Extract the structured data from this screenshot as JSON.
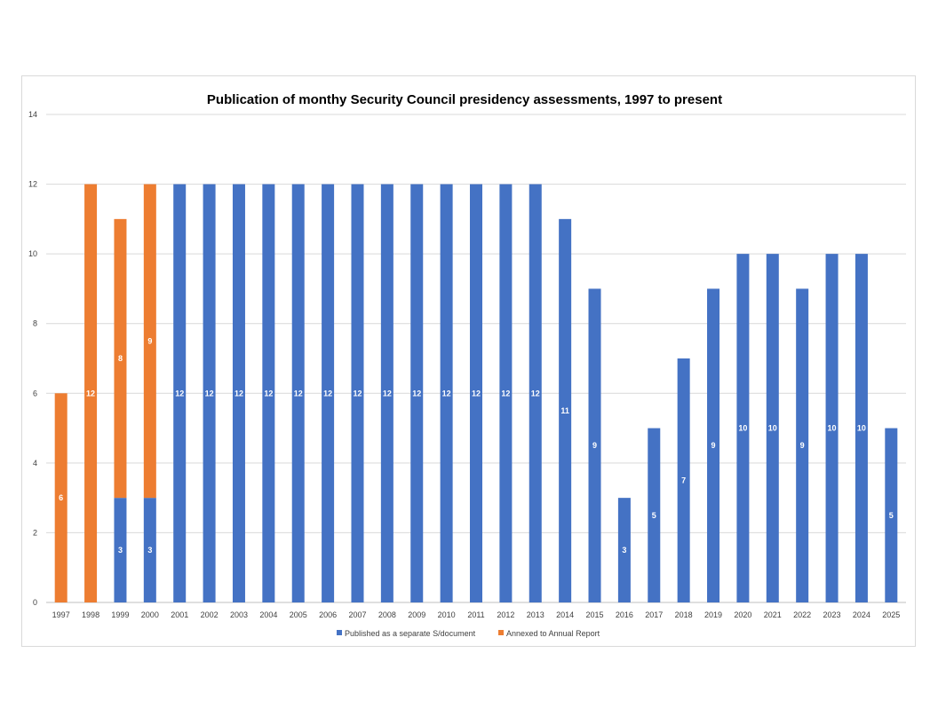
{
  "chart_data": {
    "type": "bar",
    "stacked": true,
    "title": "Publication of monthy Security Council presidency assessments, 1997 to present",
    "xlabel": "",
    "ylabel": "",
    "ylim": [
      0,
      14
    ],
    "yticks": [
      0,
      2,
      4,
      6,
      8,
      10,
      12,
      14
    ],
    "grid": true,
    "legend_position": "bottom",
    "categories": [
      "1997",
      "1998",
      "1999",
      "2000",
      "2001",
      "2002",
      "2003",
      "2004",
      "2005",
      "2006",
      "2007",
      "2008",
      "2009",
      "2010",
      "2011",
      "2012",
      "2013",
      "2014",
      "2015",
      "2016",
      "2017",
      "2018",
      "2019",
      "2020",
      "2021",
      "2022",
      "2023",
      "2024",
      "2025"
    ],
    "series": [
      {
        "name": "Published as a separate S/document",
        "color": "#4472C4",
        "values": [
          0,
          0,
          3,
          3,
          12,
          12,
          12,
          12,
          12,
          12,
          12,
          12,
          12,
          12,
          12,
          12,
          12,
          11,
          9,
          3,
          5,
          7,
          9,
          10,
          10,
          9,
          10,
          10,
          5
        ]
      },
      {
        "name": "Annexed to Annual Report",
        "color": "#ED7D31",
        "values": [
          6,
          12,
          8,
          9,
          0,
          0,
          0,
          0,
          0,
          0,
          0,
          0,
          0,
          0,
          0,
          0,
          0,
          0,
          0,
          0,
          0,
          0,
          0,
          0,
          0,
          0,
          0,
          0,
          0
        ]
      }
    ]
  }
}
